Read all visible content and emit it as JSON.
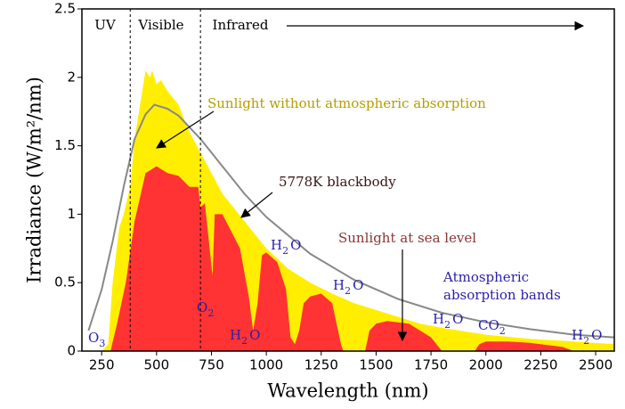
{
  "chart_data": {
    "type": "area",
    "x_label": "Wavelength (nm)",
    "y_label": "Irradiance (W/m²/nm)",
    "xlim": [
      160,
      2585
    ],
    "ylim": [
      0,
      2.5
    ],
    "xticks": [
      250,
      500,
      750,
      1000,
      1250,
      1500,
      1750,
      2000,
      2250,
      2500
    ],
    "yticks": [
      0,
      0.5,
      1,
      1.5,
      2,
      2.5
    ],
    "regions": [
      "UV",
      "Visible",
      "Infrared"
    ],
    "region_boundaries": [
      380,
      700
    ],
    "series": [
      {
        "name": "Sunlight without atmospheric absorption",
        "color": "#ffee00",
        "kind": "area",
        "x": [
          250,
          280,
          300,
          330,
          350,
          380,
          400,
          420,
          450,
          470,
          480,
          500,
          520,
          550,
          600,
          650,
          700,
          750,
          800,
          900,
          1000,
          1100,
          1200,
          1300,
          1400,
          1500,
          1600,
          1700,
          1800,
          2000,
          2200,
          2400,
          2585
        ],
        "values": [
          0,
          0.05,
          0.5,
          0.9,
          1.0,
          1.2,
          1.55,
          1.75,
          2.05,
          2.0,
          2.05,
          1.95,
          1.98,
          1.9,
          1.8,
          1.6,
          1.45,
          1.3,
          1.15,
          0.95,
          0.75,
          0.6,
          0.5,
          0.42,
          0.35,
          0.3,
          0.25,
          0.2,
          0.17,
          0.12,
          0.09,
          0.07,
          0.05
        ]
      },
      {
        "name": "Sunlight at sea level",
        "color": "#ff3333",
        "kind": "area",
        "x": [
          290,
          320,
          360,
          400,
          450,
          500,
          550,
          600,
          650,
          690,
          700,
          720,
          755,
          765,
          780,
          800,
          880,
          920,
          940,
          960,
          980,
          1000,
          1050,
          1090,
          1110,
          1130,
          1150,
          1170,
          1200,
          1250,
          1300,
          1340,
          1350,
          1450,
          1470,
          1500,
          1550,
          1650,
          1750,
          1800,
          1950,
          1970,
          2000,
          2100,
          2200,
          2350,
          2400,
          2585
        ],
        "values": [
          0,
          0.2,
          0.5,
          0.95,
          1.3,
          1.35,
          1.3,
          1.28,
          1.2,
          1.2,
          1.05,
          1.08,
          0.55,
          1.0,
          1.0,
          1.0,
          0.75,
          0.4,
          0.15,
          0.35,
          0.7,
          0.72,
          0.65,
          0.45,
          0.1,
          0.05,
          0.15,
          0.35,
          0.4,
          0.42,
          0.35,
          0.05,
          0,
          0,
          0.15,
          0.2,
          0.22,
          0.2,
          0.1,
          0,
          0,
          0.05,
          0.07,
          0.07,
          0.06,
          0.03,
          0,
          0
        ]
      },
      {
        "name": "5778K blackbody",
        "color": "#888888",
        "kind": "line",
        "x": [
          190,
          250,
          300,
          350,
          400,
          450,
          490,
          550,
          600,
          700,
          800,
          900,
          1000,
          1200,
          1400,
          1600,
          1800,
          2000,
          2200,
          2400,
          2585
        ],
        "values": [
          0.15,
          0.45,
          0.8,
          1.2,
          1.55,
          1.73,
          1.8,
          1.77,
          1.72,
          1.55,
          1.35,
          1.15,
          0.98,
          0.71,
          0.52,
          0.38,
          0.28,
          0.21,
          0.16,
          0.12,
          0.1
        ]
      }
    ],
    "absorption_title": [
      "Atmospheric",
      "absorption bands"
    ],
    "absorption_labels": [
      {
        "parts": [
          "O",
          "3"
        ]
      },
      {
        "parts": [
          "O",
          "2"
        ]
      },
      {
        "parts": [
          "H",
          "2",
          "O"
        ]
      },
      {
        "parts": [
          "H",
          "2",
          "O"
        ]
      },
      {
        "parts": [
          "H",
          "2",
          "O"
        ]
      },
      {
        "parts": [
          "H",
          "2",
          "O"
        ]
      },
      {
        "parts": [
          "CO",
          "2"
        ]
      },
      {
        "parts": [
          "H",
          "2",
          "O"
        ]
      }
    ]
  }
}
